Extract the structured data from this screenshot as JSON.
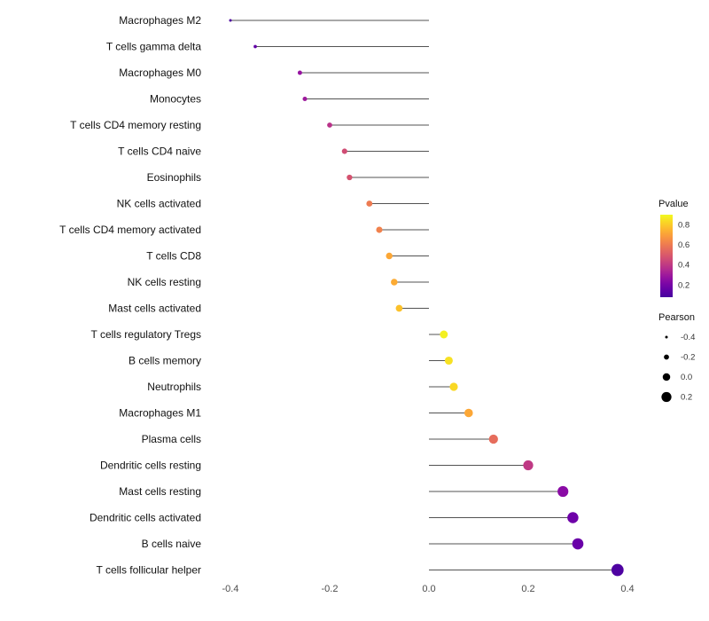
{
  "chart_data": {
    "type": "scatter",
    "variant": "lollipop",
    "title": "",
    "xlabel": "",
    "ylabel": "",
    "x_ticks": [
      -0.4,
      -0.2,
      0,
      0.2,
      0.4
    ],
    "x_tick_labels": [
      "-0.4",
      "-0.2",
      "0.0",
      "0.2",
      "0.4"
    ],
    "xlim": [
      -0.45,
      0.43
    ],
    "background": "#ffffff",
    "stem_color": "#1a1a1a",
    "points": [
      {
        "label": "Macrophages M2",
        "pearson": -0.4,
        "pvalue": 0.1
      },
      {
        "label": "T cells gamma delta",
        "pearson": -0.35,
        "pvalue": 0.15
      },
      {
        "label": "Macrophages M0",
        "pearson": -0.26,
        "pvalue": 0.28
      },
      {
        "label": "Monocytes",
        "pearson": -0.25,
        "pvalue": 0.3
      },
      {
        "label": "T cells CD4 memory resting",
        "pearson": -0.2,
        "pvalue": 0.38
      },
      {
        "label": "T cells CD4 naive",
        "pearson": -0.17,
        "pvalue": 0.46
      },
      {
        "label": "Eosinophils",
        "pearson": -0.16,
        "pvalue": 0.48
      },
      {
        "label": "NK cells activated",
        "pearson": -0.12,
        "pvalue": 0.6
      },
      {
        "label": "T cells CD4 memory activated",
        "pearson": -0.1,
        "pvalue": 0.62
      },
      {
        "label": "T cells CD8",
        "pearson": -0.08,
        "pvalue": 0.72
      },
      {
        "label": "NK cells resting",
        "pearson": -0.07,
        "pvalue": 0.73
      },
      {
        "label": "Mast cells activated",
        "pearson": -0.06,
        "pvalue": 0.78
      },
      {
        "label": "T cells regulatory Tregs",
        "pearson": 0.03,
        "pvalue": 0.88
      },
      {
        "label": "B cells memory",
        "pearson": 0.04,
        "pvalue": 0.85
      },
      {
        "label": "Neutrophils",
        "pearson": 0.05,
        "pvalue": 0.83
      },
      {
        "label": "Macrophages M1",
        "pearson": 0.08,
        "pvalue": 0.72
      },
      {
        "label": "Plasma cells",
        "pearson": 0.13,
        "pvalue": 0.56
      },
      {
        "label": "Dendritic cells resting",
        "pearson": 0.2,
        "pvalue": 0.4
      },
      {
        "label": "Mast cells resting",
        "pearson": 0.27,
        "pvalue": 0.25
      },
      {
        "label": "Dendritic cells activated",
        "pearson": 0.29,
        "pvalue": 0.18
      },
      {
        "label": "B cells naive",
        "pearson": 0.3,
        "pvalue": 0.17
      },
      {
        "label": "T cells follicular helper",
        "pearson": 0.38,
        "pvalue": 0.1
      }
    ],
    "legends": {
      "pvalue": {
        "title": "Pvalue",
        "tick_labels": [
          "0.8",
          "0.6",
          "0.4",
          "0.2"
        ],
        "tick_values": [
          0.8,
          0.6,
          0.4,
          0.2
        ],
        "domain": [
          0.08,
          0.9
        ]
      },
      "pearson": {
        "title": "Pearson",
        "tick_labels": [
          "-0.4",
          "-0.2",
          "0.0",
          "0.2"
        ],
        "tick_values": [
          -0.4,
          -0.2,
          0,
          0.2
        ]
      }
    },
    "colormap": {
      "name": "plasma",
      "stops": [
        "#46039f",
        "#6a00a8",
        "#8f0da4",
        "#b12a90",
        "#cc4778",
        "#e16462",
        "#f2844b",
        "#fca636",
        "#fcce25",
        "#f0f921"
      ]
    }
  }
}
